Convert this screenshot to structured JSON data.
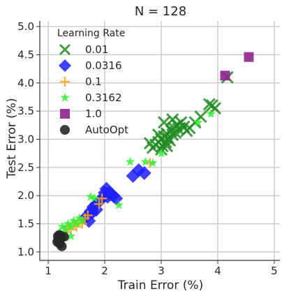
{
  "chart_data": {
    "type": "scatter",
    "title": "N = 128",
    "xlabel": "Train Error (%)",
    "ylabel": "Test Error (%)",
    "xlim": [
      0.85,
      5.1
    ],
    "ylim": [
      0.85,
      5.1
    ],
    "xticks": [
      "1",
      "2",
      "3",
      "4",
      "5"
    ],
    "yticks": [
      "1.0",
      "1.5",
      "2.0",
      "2.5",
      "3.0",
      "3.5",
      "4.0",
      "4.5",
      "5.0"
    ],
    "grid": true,
    "legend": {
      "title": "Learning Rate",
      "position": "top-left",
      "entries": [
        "0.01",
        "0.0316",
        "0.1",
        "0.3162",
        "1.0",
        "AutoOpt"
      ]
    },
    "series": [
      {
        "name": "0.01",
        "marker": "x",
        "color": "#228B22",
        "points": [
          [
            2.8,
            2.93
          ],
          [
            2.85,
            2.85
          ],
          [
            2.9,
            2.9
          ],
          [
            2.95,
            2.95
          ],
          [
            3.0,
            3.0
          ],
          [
            3.02,
            2.88
          ],
          [
            3.05,
            3.05
          ],
          [
            3.08,
            2.95
          ],
          [
            3.1,
            3.1
          ],
          [
            3.12,
            3.02
          ],
          [
            3.15,
            2.98
          ],
          [
            3.18,
            3.15
          ],
          [
            3.2,
            3.08
          ],
          [
            3.22,
            3.2
          ],
          [
            3.25,
            3.12
          ],
          [
            3.28,
            3.25
          ],
          [
            3.3,
            3.18
          ],
          [
            3.35,
            3.3
          ],
          [
            3.4,
            3.22
          ],
          [
            3.45,
            3.15
          ],
          [
            3.5,
            3.2
          ],
          [
            3.6,
            3.3
          ],
          [
            3.7,
            3.4
          ],
          [
            3.85,
            3.62
          ],
          [
            3.9,
            3.6
          ],
          [
            3.95,
            3.55
          ],
          [
            3.05,
            3.3
          ],
          [
            2.95,
            3.08
          ],
          [
            3.1,
            2.88
          ],
          [
            3.0,
            2.82
          ],
          [
            3.2,
            3.35
          ],
          [
            4.17,
            4.1
          ]
        ]
      },
      {
        "name": "0.0316",
        "marker": "D",
        "color": "#1F1FFF",
        "points": [
          [
            1.65,
            1.6
          ],
          [
            1.7,
            1.65
          ],
          [
            1.75,
            1.72
          ],
          [
            1.78,
            1.7
          ],
          [
            1.8,
            1.8
          ],
          [
            1.85,
            1.85
          ],
          [
            1.9,
            1.9
          ],
          [
            1.95,
            1.95
          ],
          [
            2.0,
            2.05
          ],
          [
            2.03,
            2.12
          ],
          [
            2.05,
            1.98
          ],
          [
            2.08,
            2.05
          ],
          [
            2.1,
            2.02
          ],
          [
            2.15,
            2.0
          ],
          [
            2.2,
            1.95
          ],
          [
            2.5,
            2.35
          ],
          [
            2.6,
            2.45
          ],
          [
            2.7,
            2.4
          ],
          [
            1.72,
            1.55
          ],
          [
            1.85,
            1.75
          ]
        ]
      },
      {
        "name": "0.1",
        "marker": "+",
        "color": "#F5A623",
        "points": [
          [
            1.35,
            1.45
          ],
          [
            1.4,
            1.4
          ],
          [
            1.45,
            1.5
          ],
          [
            1.5,
            1.45
          ],
          [
            1.55,
            1.55
          ],
          [
            1.6,
            1.5
          ],
          [
            1.65,
            1.6
          ],
          [
            1.9,
            1.85
          ],
          [
            1.95,
            1.95
          ],
          [
            1.7,
            1.65
          ],
          [
            2.8,
            2.58
          ],
          [
            1.3,
            1.35
          ]
        ]
      },
      {
        "name": "0.3162",
        "marker": "*",
        "color": "#32EE32",
        "points": [
          [
            1.2,
            1.35
          ],
          [
            1.25,
            1.45
          ],
          [
            1.3,
            1.4
          ],
          [
            1.35,
            1.5
          ],
          [
            1.4,
            1.45
          ],
          [
            1.45,
            1.55
          ],
          [
            1.5,
            1.5
          ],
          [
            1.55,
            1.6
          ],
          [
            1.6,
            1.55
          ],
          [
            1.3,
            1.25
          ],
          [
            1.75,
            1.98
          ],
          [
            1.82,
            1.95
          ],
          [
            2.25,
            1.83
          ],
          [
            2.45,
            2.6
          ],
          [
            2.72,
            2.6
          ],
          [
            2.85,
            2.58
          ],
          [
            3.0,
            2.75
          ],
          [
            3.65,
            3.3
          ],
          [
            3.88,
            3.45
          ],
          [
            1.4,
            1.28
          ],
          [
            1.25,
            1.2
          ]
        ]
      },
      {
        "name": "1.0",
        "marker": "s",
        "color": "#8E238E",
        "points": [
          [
            4.13,
            4.13
          ],
          [
            4.55,
            4.46
          ]
        ]
      },
      {
        "name": "AutoOpt",
        "marker": "o",
        "color": "#262626",
        "points": [
          [
            1.17,
            1.28
          ],
          [
            1.18,
            1.22
          ],
          [
            1.2,
            1.15
          ],
          [
            1.2,
            1.3
          ],
          [
            1.22,
            1.26
          ],
          [
            1.16,
            1.18
          ],
          [
            1.24,
            1.1
          ],
          [
            1.28,
            1.27
          ],
          [
            1.19,
            1.2
          ],
          [
            1.21,
            1.24
          ]
        ]
      }
    ]
  }
}
